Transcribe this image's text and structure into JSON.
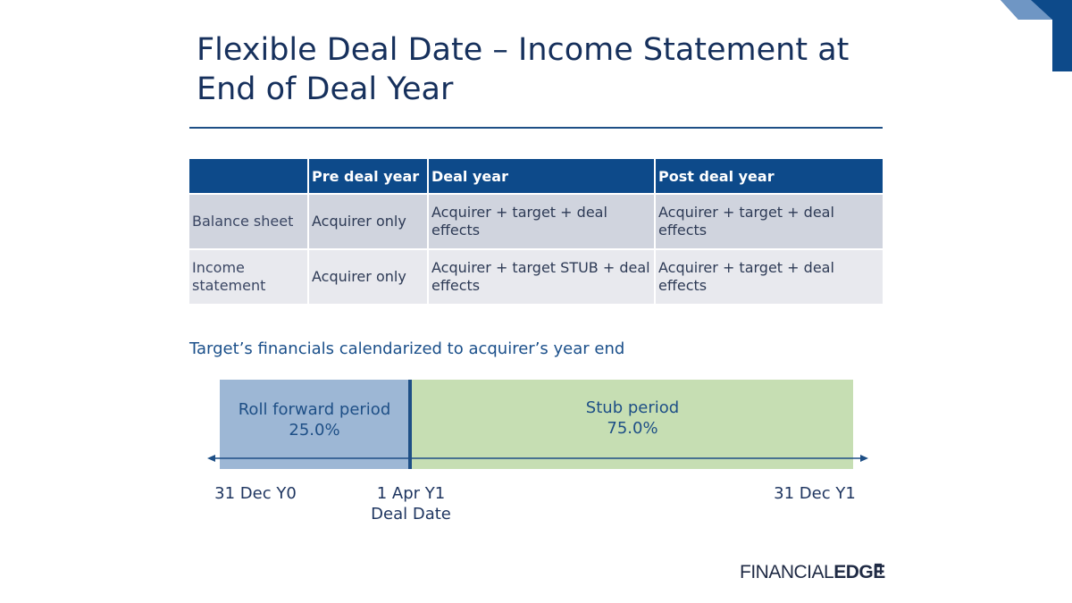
{
  "title": {
    "line1": "Flexible Deal Date – Income Statement at",
    "line2": "End of Deal Year"
  },
  "table": {
    "headers": [
      "",
      "Pre deal year",
      "Deal year",
      "Post deal year"
    ],
    "rows": [
      {
        "label": "Balance sheet",
        "pre": "Acquirer only",
        "deal": "Acquirer + target + deal effects",
        "post": "Acquirer + target + deal effects"
      },
      {
        "label": "Income statement",
        "pre": "Acquirer only",
        "deal": "Acquirer + target STUB + deal effects",
        "post": "Acquirer + target + deal effects"
      }
    ]
  },
  "subtitle": "Target’s financials calendarized to acquirer’s year end",
  "timeline": {
    "roll_forward": {
      "label": "Roll forward period",
      "percent": "25.0%",
      "fraction": 0.25
    },
    "stub": {
      "label": "Stub period",
      "percent": "75.0%",
      "fraction": 0.75
    },
    "start_date": "31 Dec Y0",
    "deal_date": "1 Apr Y1",
    "deal_date_caption": "Deal Date",
    "end_date": "31 Dec Y1"
  },
  "logo": {
    "light": "FINANCIAL",
    "bold": "EDGE"
  },
  "colors": {
    "title": "#16305c",
    "header_bg": "#0d4a8a",
    "row_a_bg": "#d0d4de",
    "row_b_bg": "#e8e9ee",
    "roll_forward": "#9db7d5",
    "stub": "#c6deb3",
    "accent": "#1e4f86"
  },
  "icons": {
    "corner": "corner-accent-icon",
    "logo_mark": "logo-corner-mark-icon"
  }
}
